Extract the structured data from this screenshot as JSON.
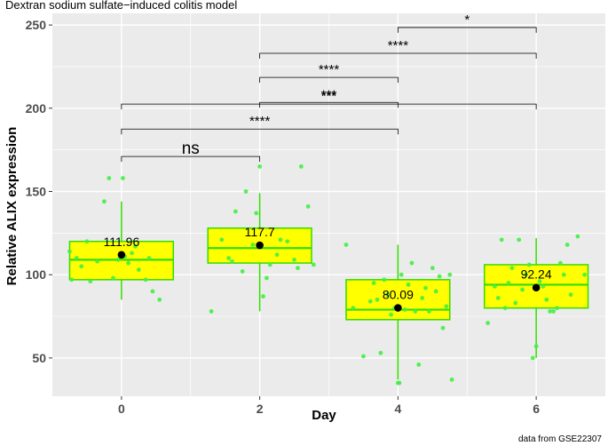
{
  "chart_data": {
    "type": "box",
    "title": "Dextran sodium sulfate−induced colitis model",
    "xlabel": "Day",
    "ylabel": "Relative ALIX expression",
    "caption": "data from GSE22307",
    "x_ticks": [
      "0",
      "2",
      "4",
      "6"
    ],
    "y_ticks": [
      "50",
      "100",
      "150",
      "200",
      "250"
    ],
    "xlim": [
      -1,
      7
    ],
    "ylim": [
      27,
      257
    ],
    "colors": {
      "box_fill": "#ffff00",
      "box_line": "#33dd00",
      "points": "#44ee44",
      "mean": "#000000",
      "grid": "#ffffff",
      "panel": "#ebebeb"
    },
    "groups": [
      {
        "day": 0,
        "label": "0",
        "q1": 97,
        "median": 109,
        "q3": 120,
        "whisker_low": 85,
        "whisker_high": 144,
        "mean": 111.96,
        "mean_label": "111.96",
        "points": [
          [
            -0.75,
            114
          ],
          [
            -0.72,
            97
          ],
          [
            -0.65,
            110
          ],
          [
            -0.58,
            105
          ],
          [
            -0.45,
            96
          ],
          [
            -0.35,
            108
          ],
          [
            -0.25,
            144
          ],
          [
            -0.18,
            158
          ],
          [
            -0.12,
            98
          ],
          [
            -0.05,
            109
          ],
          [
            0.02,
            158
          ],
          [
            0.05,
            111
          ],
          [
            0.1,
            107
          ],
          [
            0.15,
            113
          ],
          [
            0.25,
            103
          ],
          [
            0.35,
            97
          ],
          [
            0.4,
            110
          ],
          [
            0.45,
            90
          ],
          [
            0.55,
            85
          ],
          [
            -0.5,
            120
          ],
          [
            0.2,
            117
          ]
        ]
      },
      {
        "day": 2,
        "label": "2",
        "q1": 107,
        "median": 116,
        "q3": 128,
        "whisker_low": 78,
        "whisker_high": 149,
        "mean": 117.7,
        "mean_label": "117.7",
        "points": [
          [
            1.3,
            78
          ],
          [
            1.45,
            121
          ],
          [
            1.55,
            110
          ],
          [
            1.6,
            108
          ],
          [
            1.65,
            138
          ],
          [
            1.75,
            102
          ],
          [
            1.8,
            150
          ],
          [
            1.9,
            118
          ],
          [
            1.95,
            137
          ],
          [
            2.0,
            165
          ],
          [
            2.05,
            87
          ],
          [
            2.1,
            98
          ],
          [
            2.15,
            106
          ],
          [
            2.25,
            112
          ],
          [
            2.3,
            121
          ],
          [
            2.4,
            120
          ],
          [
            2.5,
            109
          ],
          [
            2.55,
            104
          ],
          [
            2.6,
            165
          ],
          [
            2.7,
            141
          ],
          [
            2.78,
            106
          ]
        ]
      },
      {
        "day": 4,
        "label": "4",
        "q1": 73,
        "median": 79,
        "q3": 97,
        "whisker_low": 37,
        "whisker_high": 118,
        "mean": 80.09,
        "mean_label": "80.09",
        "points": [
          [
            3.25,
            118
          ],
          [
            3.35,
            80
          ],
          [
            3.5,
            51
          ],
          [
            3.6,
            84
          ],
          [
            3.65,
            95
          ],
          [
            3.7,
            85
          ],
          [
            3.75,
            53
          ],
          [
            3.8,
            97
          ],
          [
            3.85,
            88
          ],
          [
            3.9,
            76
          ],
          [
            3.95,
            80
          ],
          [
            4.0,
            35
          ],
          [
            4.02,
            35
          ],
          [
            4.05,
            100
          ],
          [
            4.1,
            79
          ],
          [
            4.15,
            94
          ],
          [
            4.2,
            107
          ],
          [
            4.25,
            78
          ],
          [
            4.3,
            46
          ],
          [
            4.35,
            86
          ],
          [
            4.4,
            92
          ],
          [
            4.45,
            78
          ],
          [
            4.5,
            104
          ],
          [
            4.55,
            90
          ],
          [
            4.6,
            99
          ],
          [
            4.65,
            68
          ],
          [
            4.7,
            81
          ],
          [
            4.75,
            100
          ],
          [
            4.78,
            37
          ]
        ]
      },
      {
        "day": 6,
        "label": "6",
        "q1": 80,
        "median": 94,
        "q3": 106,
        "whisker_low": 50,
        "whisker_high": 122,
        "mean": 92.24,
        "mean_label": "92.24",
        "points": [
          [
            5.3,
            71
          ],
          [
            5.4,
            93
          ],
          [
            5.45,
            86
          ],
          [
            5.5,
            121
          ],
          [
            5.55,
            80
          ],
          [
            5.6,
            95
          ],
          [
            5.65,
            104
          ],
          [
            5.7,
            83
          ],
          [
            5.8,
            91
          ],
          [
            5.85,
            100
          ],
          [
            5.9,
            106
          ],
          [
            5.95,
            50
          ],
          [
            6.0,
            57
          ],
          [
            6.05,
            96
          ],
          [
            6.1,
            93
          ],
          [
            6.15,
            85
          ],
          [
            6.2,
            78
          ],
          [
            6.25,
            78
          ],
          [
            6.3,
            80
          ],
          [
            6.35,
            107
          ],
          [
            6.4,
            100
          ],
          [
            6.5,
            88
          ],
          [
            6.6,
            123
          ],
          [
            6.7,
            100
          ],
          [
            5.75,
            121
          ],
          [
            6.45,
            118
          ]
        ]
      }
    ],
    "significance": [
      {
        "from": 4,
        "to": 6,
        "y": 248.5,
        "label": "*"
      },
      {
        "from": 2,
        "to": 6,
        "y": 233,
        "label": "****"
      },
      {
        "from": 2,
        "to": 4,
        "y": 218.5,
        "label": "****"
      },
      {
        "from": 2,
        "to": 4,
        "y": 203.5,
        "label": "***"
      },
      {
        "from": 0,
        "to": 6,
        "y": 202.5,
        "label": "***"
      },
      {
        "from": 0,
        "to": 4,
        "y": 187.5,
        "label": "****"
      },
      {
        "from": 0,
        "to": 2,
        "y": 171,
        "label": "ns"
      }
    ]
  }
}
